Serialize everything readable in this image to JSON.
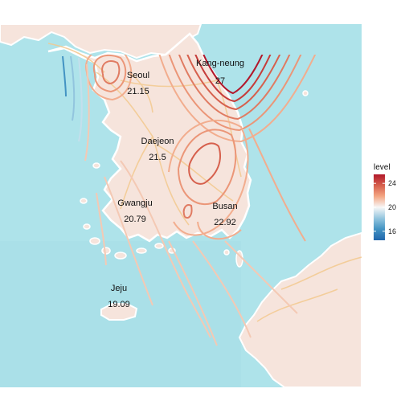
{
  "chart_data": {
    "type": "contour-map",
    "cities": [
      {
        "name": "Seoul",
        "value": "21.15"
      },
      {
        "name": "Kang-neung",
        "value": "27"
      },
      {
        "name": "Daejeon",
        "value": "21.5"
      },
      {
        "name": "Gwangju",
        "value": "20.79"
      },
      {
        "name": "Busan",
        "value": "22.92"
      },
      {
        "name": "Jeju",
        "value": "19.09"
      }
    ],
    "legend": {
      "title": "level",
      "ticks": [
        24,
        20,
        16
      ],
      "range": [
        14.5,
        25.5
      ],
      "palette": [
        "#2166ac",
        "#4393c3",
        "#92c5de",
        "#f7f7f7",
        "#f4a582",
        "#d6604d",
        "#b2182b"
      ]
    },
    "colors": {
      "sea": "#aee3ea",
      "land": "#f6e4dc",
      "coast": "#ffffff",
      "road": "#f3c98f"
    }
  }
}
